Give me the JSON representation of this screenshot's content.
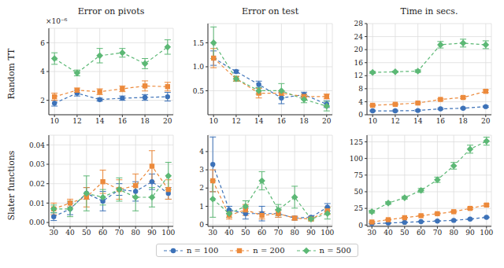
{
  "chart_data": [
    {
      "type": "line",
      "title": "Error on pivots",
      "ylabel": "Random TT",
      "annotation": "×10⁻⁶",
      "legend": "bottom",
      "grid": true,
      "x": [
        10,
        12,
        14,
        16,
        18,
        20
      ],
      "xlim": [
        9.5,
        20.5
      ],
      "xticks": [
        10,
        12,
        14,
        16,
        18,
        20
      ],
      "ylim": [
        1,
        7
      ],
      "yticks": [
        2,
        4,
        6
      ],
      "series": [
        {
          "name": "n = 100",
          "color": "#3d72b8",
          "marker": "circle",
          "line_style": "dashed",
          "values": [
            1.8,
            2.5,
            2.05,
            2.15,
            2.2,
            2.25
          ],
          "errors": [
            0.2,
            0.2,
            0.1,
            0.15,
            0.2,
            0.3
          ]
        },
        {
          "name": "n = 200",
          "color": "#ec8a3c",
          "marker": "square",
          "line_style": "dashed",
          "values": [
            2.25,
            2.7,
            2.6,
            2.8,
            3.0,
            2.95
          ],
          "errors": [
            0.25,
            0.15,
            0.2,
            0.2,
            0.35,
            0.3
          ]
        },
        {
          "name": "n = 500",
          "color": "#5cb875",
          "marker": "diamond",
          "line_style": "dashed",
          "values": [
            4.9,
            3.9,
            5.1,
            5.3,
            4.55,
            5.7
          ],
          "errors": [
            0.4,
            0.2,
            0.5,
            0.3,
            0.35,
            0.5
          ]
        }
      ]
    },
    {
      "type": "line",
      "title": "Error on test",
      "grid": true,
      "x": [
        10,
        12,
        14,
        16,
        18,
        20
      ],
      "xlim": [
        9.5,
        20.5
      ],
      "xticks": [
        10,
        12,
        14,
        16,
        18,
        20
      ],
      "ylim": [
        0,
        1.9
      ],
      "yticks": [
        0.5,
        {
          "value": 1,
          "label": "1.0"
        },
        1.5
      ],
      "series": [
        {
          "name": "n = 100",
          "color": "#3d72b8",
          "marker": "circle",
          "line_style": "dashed",
          "values": [
            1.18,
            0.9,
            0.63,
            0.35,
            0.42,
            0.22
          ],
          "errors": [
            0.15,
            0.03,
            0.07,
            0.12,
            0.05,
            0.07
          ]
        },
        {
          "name": "n = 200",
          "color": "#ec8a3c",
          "marker": "square",
          "line_style": "dashed",
          "values": [
            1.18,
            0.75,
            0.45,
            0.45,
            0.38,
            0.38
          ],
          "errors": [
            0.2,
            0.05,
            0.1,
            0.05,
            0.05,
            0.05
          ]
        },
        {
          "name": "n = 500",
          "color": "#5cb875",
          "marker": "diamond",
          "line_style": "dashed",
          "values": [
            1.5,
            0.75,
            0.5,
            0.5,
            0.32,
            0.18
          ],
          "errors": [
            0.33,
            0.05,
            0.07,
            0.15,
            0.07,
            0.1
          ]
        }
      ]
    },
    {
      "type": "line",
      "title": "Time in secs.",
      "grid": true,
      "x": [
        10,
        12,
        14,
        16,
        18,
        20
      ],
      "xlim": [
        9.5,
        20.5
      ],
      "xticks": [
        10,
        12,
        14,
        16,
        18,
        20
      ],
      "ylim": [
        0,
        28
      ],
      "yticks": [
        0,
        4,
        8,
        12,
        16,
        20,
        24,
        28
      ],
      "series": [
        {
          "name": "n = 100",
          "color": "#3d72b8",
          "marker": "circle",
          "line_style": "dashed",
          "values": [
            1.2,
            1.2,
            1.3,
            1.8,
            2.0,
            2.5
          ],
          "errors": [
            0.2,
            0.2,
            0.2,
            0.2,
            0.2,
            0.2
          ]
        },
        {
          "name": "n = 200",
          "color": "#ec8a3c",
          "marker": "square",
          "line_style": "dashed",
          "values": [
            2.9,
            3.2,
            3.6,
            4.7,
            5.3,
            7.2
          ],
          "errors": [
            0.2,
            0.2,
            0.2,
            0.2,
            0.3,
            0.4
          ]
        },
        {
          "name": "n = 500",
          "color": "#5cb875",
          "marker": "diamond",
          "line_style": "dashed",
          "values": [
            13.0,
            13.2,
            13.4,
            21.5,
            22.0,
            21.5
          ],
          "errors": [
            0.3,
            0.2,
            0.4,
            1.0,
            1.2,
            1.2
          ]
        }
      ]
    },
    {
      "type": "line",
      "ylabel": "Slater functions",
      "grid": true,
      "x": [
        30,
        40,
        50,
        60,
        70,
        80,
        90,
        100
      ],
      "xlim": [
        27,
        103
      ],
      "xticks": [
        30,
        40,
        50,
        60,
        70,
        80,
        90,
        100
      ],
      "ylim": [
        -0.002,
        0.045
      ],
      "yticks": [
        {
          "value": 0,
          "label": "0.00"
        },
        0.01,
        0.02,
        0.03,
        0.04
      ],
      "series": [
        {
          "name": "n = 100",
          "color": "#3d72b8",
          "marker": "circle",
          "line_style": "dashed",
          "values": [
            0.003,
            0.007,
            0.015,
            0.011,
            0.017,
            0.016,
            0.021,
            0.015
          ],
          "errors": [
            0.002,
            0.003,
            0.003,
            0.005,
            0.003,
            0.005,
            0.004,
            0.003
          ]
        },
        {
          "name": "n = 200",
          "color": "#ec8a3c",
          "marker": "square",
          "line_style": "dashed",
          "values": [
            0.007,
            0.01,
            0.013,
            0.021,
            0.017,
            0.019,
            0.029,
            0.017
          ],
          "errors": [
            0.003,
            0.002,
            0.005,
            0.006,
            0.005,
            0.006,
            0.008,
            0.005
          ]
        },
        {
          "name": "n = 500",
          "color": "#5cb875",
          "marker": "diamond",
          "line_style": "dashed",
          "values": [
            0.007,
            0.007,
            0.015,
            0.013,
            0.017,
            0.013,
            0.013,
            0.024
          ],
          "errors": [
            0.002,
            0.004,
            0.009,
            0.004,
            0.006,
            0.007,
            0.005,
            0.007
          ]
        }
      ]
    },
    {
      "type": "line",
      "grid": true,
      "x": [
        30,
        40,
        50,
        60,
        70,
        80,
        90,
        100
      ],
      "xlim": [
        27,
        103
      ],
      "xticks": [
        30,
        40,
        50,
        60,
        70,
        80,
        90,
        100
      ],
      "ylim": [
        -0.1,
        4.9
      ],
      "yticks": [
        0,
        1,
        2,
        3,
        4
      ],
      "series": [
        {
          "name": "n = 100",
          "color": "#3d72b8",
          "marker": "circle",
          "line_style": "dashed",
          "values": [
            3.3,
            0.8,
            0.6,
            0.6,
            0.6,
            0.35,
            0.4,
            0.95
          ],
          "errors": [
            1.5,
            0.2,
            0.3,
            0.4,
            0.2,
            0.1,
            0.05,
            0.2
          ]
        },
        {
          "name": "n = 200",
          "color": "#ec8a3c",
          "marker": "square",
          "line_style": "dashed",
          "values": [
            2.4,
            0.5,
            0.8,
            0.5,
            0.6,
            0.35,
            0.3,
            0.75
          ],
          "errors": [
            0.6,
            0.2,
            0.3,
            0.2,
            0.2,
            0.1,
            0.05,
            0.2
          ]
        },
        {
          "name": "n = 500",
          "color": "#5cb875",
          "marker": "diamond",
          "line_style": "dashed",
          "values": [
            1.4,
            0.6,
            1.0,
            2.4,
            0.8,
            1.5,
            0.3,
            0.6
          ],
          "errors": [
            1.0,
            0.2,
            0.3,
            0.5,
            0.3,
            0.6,
            0.1,
            0.3
          ]
        }
      ]
    },
    {
      "type": "line",
      "grid": true,
      "x": [
        30,
        40,
        50,
        60,
        70,
        80,
        90,
        100
      ],
      "xlim": [
        27,
        103
      ],
      "xticks": [
        30,
        40,
        50,
        60,
        70,
        80,
        90,
        100
      ],
      "ylim": [
        -2,
        135
      ],
      "yticks": [
        0,
        25,
        50,
        75,
        100,
        125
      ],
      "series": [
        {
          "name": "n = 100",
          "color": "#3d72b8",
          "marker": "circle",
          "line_style": "dashed",
          "values": [
            2,
            3,
            4,
            5,
            6,
            7,
            9,
            11.5
          ],
          "errors": [
            0.3,
            0.3,
            0.3,
            0.3,
            0.4,
            0.4,
            0.5,
            0.5
          ]
        },
        {
          "name": "n = 200",
          "color": "#ec8a3c",
          "marker": "square",
          "line_style": "dashed",
          "values": [
            4.5,
            8,
            11,
            14,
            17,
            20,
            25,
            30
          ],
          "errors": [
            0.5,
            0.5,
            0.5,
            0.5,
            1,
            1,
            1.5,
            1.5
          ]
        },
        {
          "name": "n = 500",
          "color": "#5cb875",
          "marker": "diamond",
          "line_style": "dashed",
          "values": [
            20,
            33,
            41,
            52,
            68,
            89,
            114,
            126
          ],
          "errors": [
            2,
            2,
            2,
            3,
            4,
            5,
            6,
            6
          ]
        }
      ]
    }
  ]
}
